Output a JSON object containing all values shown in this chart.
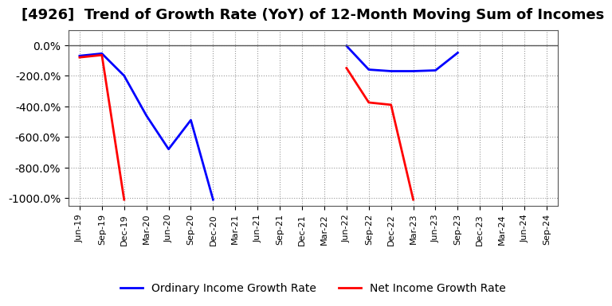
{
  "title": "[4926]  Trend of Growth Rate (YoY) of 12-Month Moving Sum of Incomes",
  "title_fontsize": 13,
  "xlabel": "",
  "ylabel": "",
  "ylim": [
    -1050,
    100
  ],
  "yticks": [
    0,
    -200,
    -400,
    -600,
    -800,
    -1000
  ],
  "background_color": "#ffffff",
  "plot_bg_color": "#ffffff",
  "grid_color": "#aaaaaa",
  "x_labels": [
    "Jun-19",
    "Sep-19",
    "Dec-19",
    "Mar-20",
    "Jun-20",
    "Sep-20",
    "Dec-20",
    "Mar-21",
    "Jun-21",
    "Sep-21",
    "Dec-21",
    "Mar-22",
    "Jun-22",
    "Sep-22",
    "Dec-22",
    "Mar-23",
    "Jun-23",
    "Sep-23",
    "Dec-23",
    "Mar-24",
    "Jun-24",
    "Sep-24"
  ],
  "ordinary_income": {
    "color": "#0000ff",
    "label": "Ordinary Income Growth Rate",
    "values": [
      -70,
      -55,
      -200,
      -460,
      -680,
      -490,
      -1010,
      null,
      null,
      null,
      null,
      null,
      -5,
      -160,
      -170,
      -170,
      -165,
      -50,
      null,
      null,
      null,
      null
    ]
  },
  "net_income": {
    "color": "#ff0000",
    "label": "Net Income Growth Rate",
    "values": [
      -80,
      -65,
      -1010,
      null,
      null,
      null,
      null,
      null,
      null,
      null,
      null,
      null,
      -150,
      -375,
      -390,
      -1010,
      null,
      null,
      null,
      null,
      null,
      null
    ]
  },
  "line_width": 2.0,
  "legend_fontsize": 10
}
